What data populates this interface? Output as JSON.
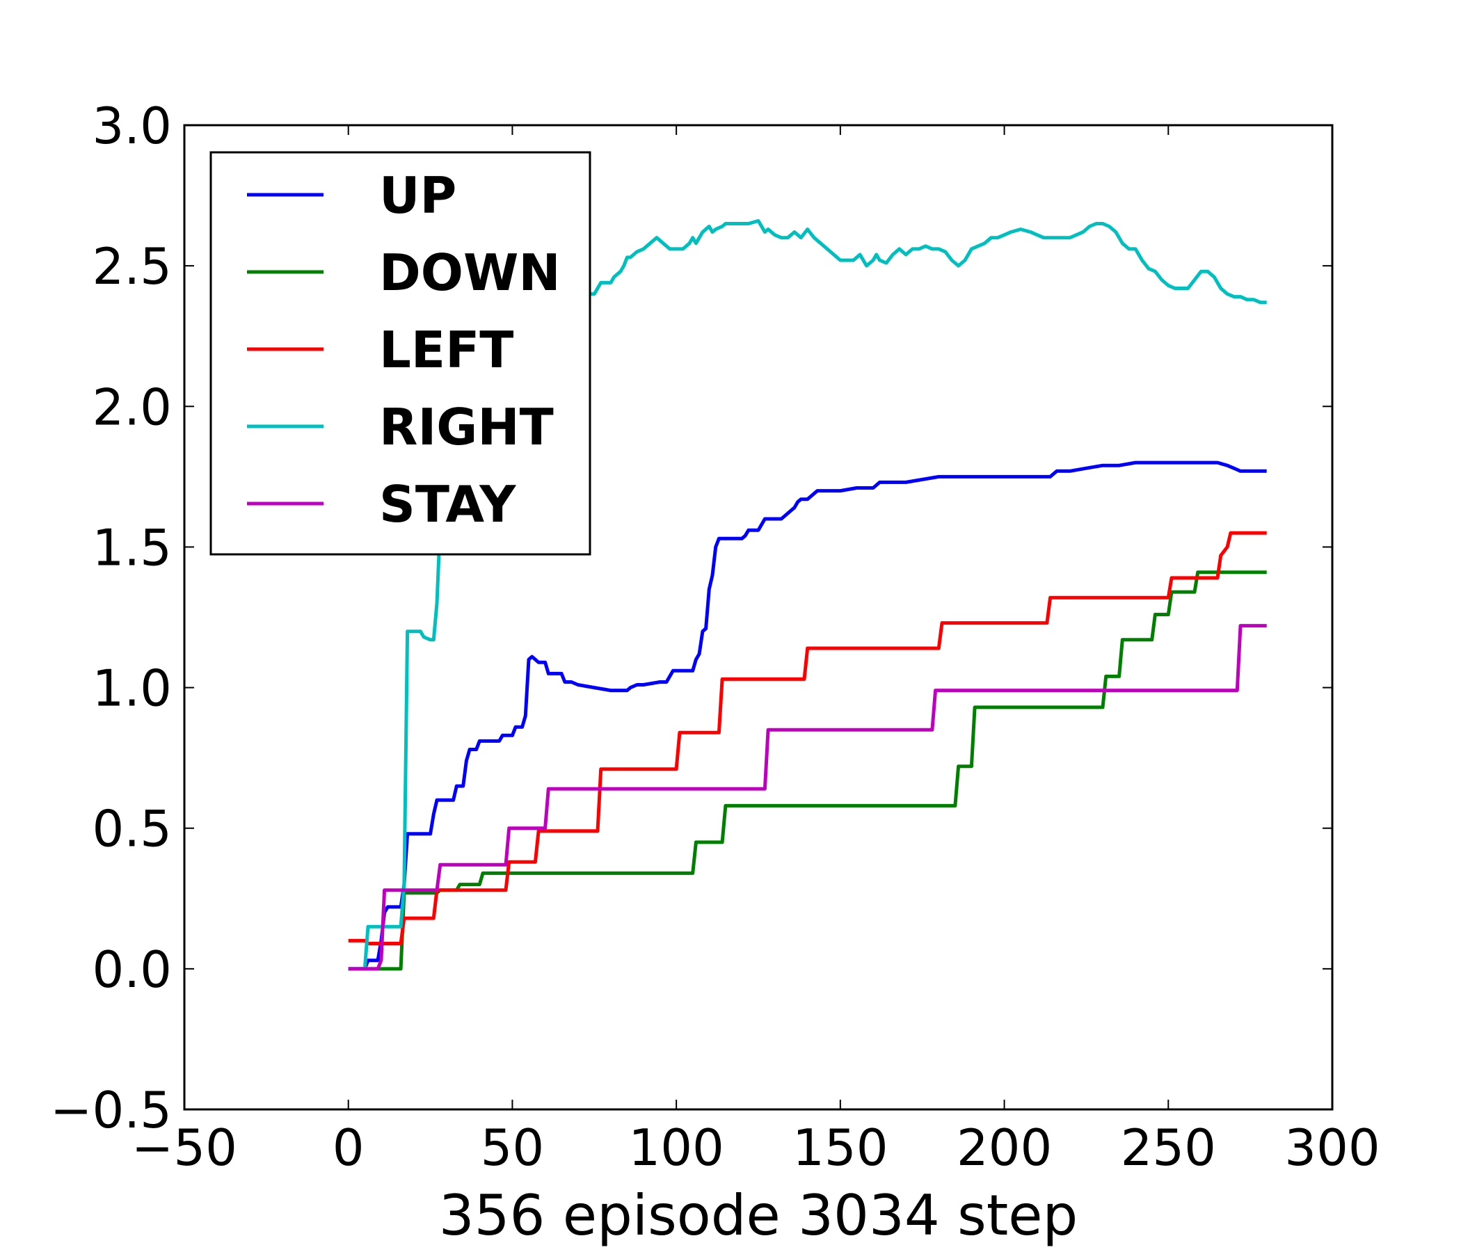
{
  "chart_data": {
    "type": "line",
    "title": "",
    "xlabel": "356 episode 3034 step",
    "ylabel": "",
    "xlim": [
      -50,
      300
    ],
    "ylim": [
      -0.5,
      3.0
    ],
    "xticks": [
      -50,
      0,
      50,
      100,
      150,
      200,
      250,
      300
    ],
    "yticks": [
      -0.5,
      0.0,
      0.5,
      1.0,
      1.5,
      2.0,
      2.5,
      3.0
    ],
    "xtick_labels": [
      "−50",
      "0",
      "50",
      "100",
      "150",
      "200",
      "250",
      "300"
    ],
    "ytick_labels": [
      "−0.5",
      "0.0",
      "0.5",
      "1.0",
      "1.5",
      "2.0",
      "2.5",
      "3.0"
    ],
    "grid": false,
    "legend_position": "upper-left",
    "series": [
      {
        "name": "UP",
        "color": "#0000ff",
        "x": [
          0,
          5,
          6,
          9,
          10,
          11,
          12,
          16,
          17,
          18,
          25,
          26,
          27,
          32,
          33,
          35,
          36,
          37,
          39,
          40,
          46,
          47,
          50,
          51,
          53,
          54,
          55,
          56,
          57,
          58,
          60,
          61,
          65,
          66,
          68,
          70,
          75,
          80,
          85,
          86,
          88,
          90,
          95,
          97,
          98,
          99,
          100,
          105,
          106,
          107,
          108,
          109,
          110,
          111,
          112,
          113,
          114,
          115,
          120,
          121,
          122,
          125,
          126,
          127,
          128,
          129,
          130,
          132,
          133,
          135,
          136,
          137,
          138,
          140,
          141,
          142,
          143,
          144,
          145,
          148,
          150,
          155,
          160,
          161,
          162,
          165,
          170,
          175,
          180,
          185,
          190,
          200,
          210,
          214,
          215,
          216,
          220,
          225,
          230,
          235,
          240,
          245,
          250,
          255,
          260,
          265,
          268,
          270,
          272,
          280
        ],
        "y": [
          0.0,
          0.0,
          0.03,
          0.03,
          0.1,
          0.2,
          0.22,
          0.22,
          0.3,
          0.48,
          0.48,
          0.55,
          0.6,
          0.6,
          0.65,
          0.65,
          0.74,
          0.78,
          0.78,
          0.81,
          0.81,
          0.83,
          0.83,
          0.86,
          0.86,
          0.9,
          1.1,
          1.11,
          1.1,
          1.09,
          1.09,
          1.05,
          1.05,
          1.02,
          1.02,
          1.01,
          1.0,
          0.99,
          0.99,
          1.0,
          1.01,
          1.01,
          1.02,
          1.02,
          1.04,
          1.06,
          1.06,
          1.06,
          1.1,
          1.12,
          1.2,
          1.21,
          1.35,
          1.4,
          1.5,
          1.53,
          1.53,
          1.53,
          1.53,
          1.54,
          1.56,
          1.56,
          1.58,
          1.6,
          1.6,
          1.6,
          1.6,
          1.6,
          1.61,
          1.63,
          1.64,
          1.66,
          1.67,
          1.67,
          1.68,
          1.69,
          1.7,
          1.7,
          1.7,
          1.7,
          1.7,
          1.71,
          1.71,
          1.72,
          1.73,
          1.73,
          1.73,
          1.74,
          1.75,
          1.75,
          1.75,
          1.75,
          1.75,
          1.75,
          1.76,
          1.77,
          1.77,
          1.78,
          1.79,
          1.79,
          1.8,
          1.8,
          1.8,
          1.8,
          1.8,
          1.8,
          1.79,
          1.78,
          1.77,
          1.77
        ]
      },
      {
        "name": "DOWN",
        "color": "#008000",
        "x": [
          0,
          16,
          17,
          27,
          28,
          33,
          34,
          40,
          41,
          105,
          106,
          114,
          115,
          185,
          186,
          190,
          191,
          230,
          231,
          235,
          236,
          245,
          246,
          250,
          251,
          258,
          259,
          265,
          280
        ],
        "y": [
          0.0,
          0.0,
          0.27,
          0.27,
          0.28,
          0.28,
          0.3,
          0.3,
          0.34,
          0.34,
          0.45,
          0.45,
          0.58,
          0.58,
          0.72,
          0.72,
          0.93,
          0.93,
          1.04,
          1.04,
          1.17,
          1.17,
          1.26,
          1.26,
          1.34,
          1.34,
          1.41,
          1.41,
          1.41
        ]
      },
      {
        "name": "LEFT",
        "color": "#ff0000",
        "x": [
          0,
          5,
          6,
          16,
          17,
          26,
          27,
          48,
          49,
          57,
          58,
          76,
          77,
          100,
          101,
          113,
          114,
          139,
          140,
          180,
          181,
          213,
          214,
          250,
          251,
          265,
          266,
          268,
          269,
          280
        ],
        "y": [
          0.1,
          0.1,
          0.09,
          0.09,
          0.18,
          0.18,
          0.28,
          0.28,
          0.38,
          0.38,
          0.49,
          0.49,
          0.71,
          0.71,
          0.84,
          0.84,
          1.03,
          1.03,
          1.14,
          1.14,
          1.23,
          1.23,
          1.32,
          1.32,
          1.39,
          1.39,
          1.47,
          1.5,
          1.55,
          1.55
        ]
      },
      {
        "name": "RIGHT",
        "color": "#00bfbf",
        "x": [
          0,
          5,
          6,
          11,
          16,
          17,
          18,
          22,
          23,
          25,
          26,
          27,
          28,
          30,
          31,
          35,
          36,
          37,
          38,
          39,
          40,
          45,
          46,
          47,
          50,
          51,
          52,
          53,
          54,
          55,
          56,
          57,
          58,
          59,
          60,
          61,
          62,
          63,
          65,
          66,
          67,
          68,
          70,
          71,
          75,
          76,
          77,
          80,
          81,
          83,
          84,
          85,
          86,
          88,
          90,
          92,
          94,
          96,
          98,
          100,
          102,
          104,
          105,
          106,
          108,
          110,
          111,
          112,
          114,
          115,
          118,
          122,
          125,
          126,
          127,
          128,
          130,
          132,
          134,
          136,
          138,
          140,
          142,
          144,
          146,
          148,
          150,
          152,
          154,
          156,
          158,
          160,
          161,
          162,
          164,
          166,
          168,
          170,
          172,
          174,
          176,
          178,
          180,
          182,
          184,
          186,
          188,
          190,
          192,
          194,
          196,
          198,
          200,
          202,
          205,
          208,
          210,
          212,
          215,
          220,
          222,
          224,
          226,
          228,
          230,
          232,
          234,
          236,
          238,
          240,
          242,
          244,
          246,
          248,
          250,
          252,
          254,
          256,
          258,
          260,
          262,
          264,
          266,
          268,
          270,
          272,
          274,
          276,
          278,
          280
        ],
        "y": [
          0.0,
          0.0,
          0.15,
          0.15,
          0.15,
          0.3,
          1.2,
          1.2,
          1.18,
          1.17,
          1.17,
          1.3,
          1.58,
          1.58,
          1.57,
          1.57,
          1.6,
          1.65,
          1.74,
          1.72,
          1.72,
          1.8,
          1.77,
          1.79,
          1.79,
          1.8,
          1.85,
          1.9,
          2.0,
          2.05,
          2.07,
          2.07,
          2.12,
          2.15,
          2.15,
          2.15,
          2.25,
          2.32,
          2.32,
          2.38,
          2.4,
          2.38,
          2.37,
          2.4,
          2.4,
          2.42,
          2.44,
          2.44,
          2.46,
          2.48,
          2.5,
          2.53,
          2.53,
          2.55,
          2.56,
          2.58,
          2.6,
          2.58,
          2.56,
          2.56,
          2.56,
          2.58,
          2.6,
          2.58,
          2.62,
          2.64,
          2.62,
          2.63,
          2.64,
          2.65,
          2.65,
          2.65,
          2.66,
          2.64,
          2.62,
          2.63,
          2.61,
          2.6,
          2.6,
          2.62,
          2.6,
          2.63,
          2.6,
          2.58,
          2.56,
          2.54,
          2.52,
          2.52,
          2.52,
          2.54,
          2.5,
          2.52,
          2.54,
          2.52,
          2.51,
          2.54,
          2.56,
          2.54,
          2.56,
          2.56,
          2.57,
          2.56,
          2.56,
          2.55,
          2.52,
          2.5,
          2.52,
          2.56,
          2.57,
          2.58,
          2.6,
          2.6,
          2.61,
          2.62,
          2.63,
          2.62,
          2.61,
          2.6,
          2.6,
          2.6,
          2.61,
          2.62,
          2.64,
          2.65,
          2.65,
          2.64,
          2.62,
          2.58,
          2.56,
          2.56,
          2.52,
          2.49,
          2.48,
          2.45,
          2.43,
          2.42,
          2.42,
          2.42,
          2.45,
          2.48,
          2.48,
          2.46,
          2.42,
          2.4,
          2.39,
          2.39,
          2.38,
          2.38,
          2.37,
          2.37
        ]
      },
      {
        "name": "STAY",
        "color": "#bf00bf",
        "x": [
          0,
          9,
          10,
          11,
          12,
          15,
          20,
          27,
          28,
          48,
          49,
          52,
          53,
          60,
          61,
          127,
          128,
          178,
          179,
          271,
          272,
          280
        ],
        "y": [
          0.0,
          0.0,
          0.03,
          0.28,
          0.28,
          0.28,
          0.28,
          0.28,
          0.37,
          0.37,
          0.5,
          0.5,
          0.5,
          0.5,
          0.64,
          0.64,
          0.85,
          0.85,
          0.99,
          0.99,
          1.22,
          1.22
        ]
      }
    ]
  }
}
